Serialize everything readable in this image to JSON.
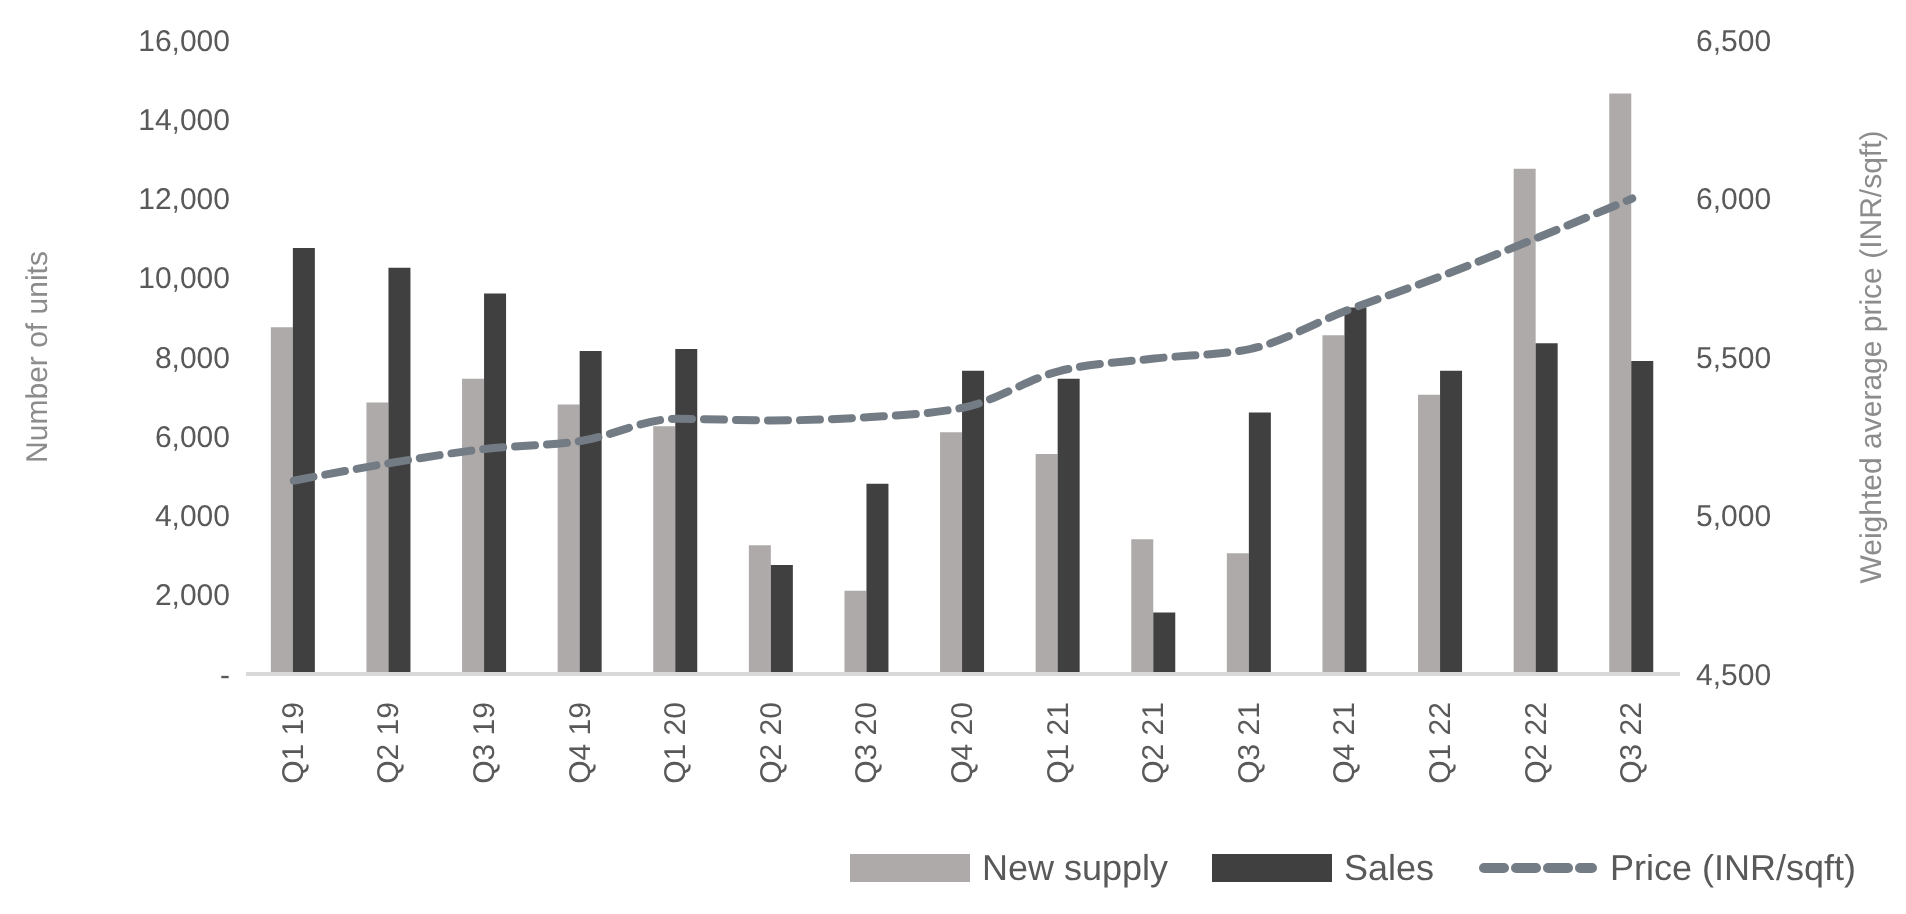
{
  "chart_data": {
    "type": "bar",
    "ylabel": "Number of units",
    "y2label": "Weighted average price (INR/sqft)",
    "categories": [
      "Q1 19",
      "Q2 19",
      "Q3 19",
      "Q4 19",
      "Q1 20",
      "Q2 20",
      "Q3 20",
      "Q4 20",
      "Q1 21",
      "Q2 21",
      "Q3 21",
      "Q4 21",
      "Q1 22",
      "Q2 22",
      "Q3 22"
    ],
    "series": [
      {
        "name": "New supply",
        "color": "#aeaaaa",
        "values": [
          8750,
          6850,
          7450,
          6800,
          6250,
          3250,
          2100,
          6100,
          5550,
          3400,
          3050,
          8550,
          7050,
          12750,
          14650
        ]
      },
      {
        "name": "Sales",
        "color": "#404040",
        "values": [
          10750,
          10250,
          9600,
          8150,
          8200,
          2750,
          4800,
          7650,
          7450,
          1550,
          6600,
          9250,
          7650,
          8350,
          7900
        ]
      },
      {
        "name": "Price (INR/sqft)",
        "type": "line",
        "axis": "y2",
        "color": "#737b84",
        "line_style": "dashed",
        "marker": "none",
        "values": [
          5110,
          5165,
          5210,
          5235,
          5305,
          5300,
          5310,
          5340,
          5455,
          5495,
          5525,
          5645,
          5755,
          5875,
          6000
        ]
      }
    ],
    "ylim": [
      0,
      16000
    ],
    "yticks": [
      {
        "value": 0,
        "label": "-"
      },
      {
        "value": 2000,
        "label": "2,000"
      },
      {
        "value": 4000,
        "label": "4,000"
      },
      {
        "value": 6000,
        "label": "6,000"
      },
      {
        "value": 8000,
        "label": "8,000"
      },
      {
        "value": 10000,
        "label": "10,000"
      },
      {
        "value": 12000,
        "label": "12,000"
      },
      {
        "value": 14000,
        "label": "14,000"
      },
      {
        "value": 16000,
        "label": "16,000"
      }
    ],
    "y2lim": [
      4500,
      6500
    ],
    "y2ticks": [
      {
        "value": 4500,
        "label": "4,500"
      },
      {
        "value": 5000,
        "label": "5,000"
      },
      {
        "value": 5500,
        "label": "5,500"
      },
      {
        "value": 6000,
        "label": "6,000"
      },
      {
        "value": 6500,
        "label": "6,500"
      }
    ],
    "grid": false,
    "legend": "bottom"
  }
}
